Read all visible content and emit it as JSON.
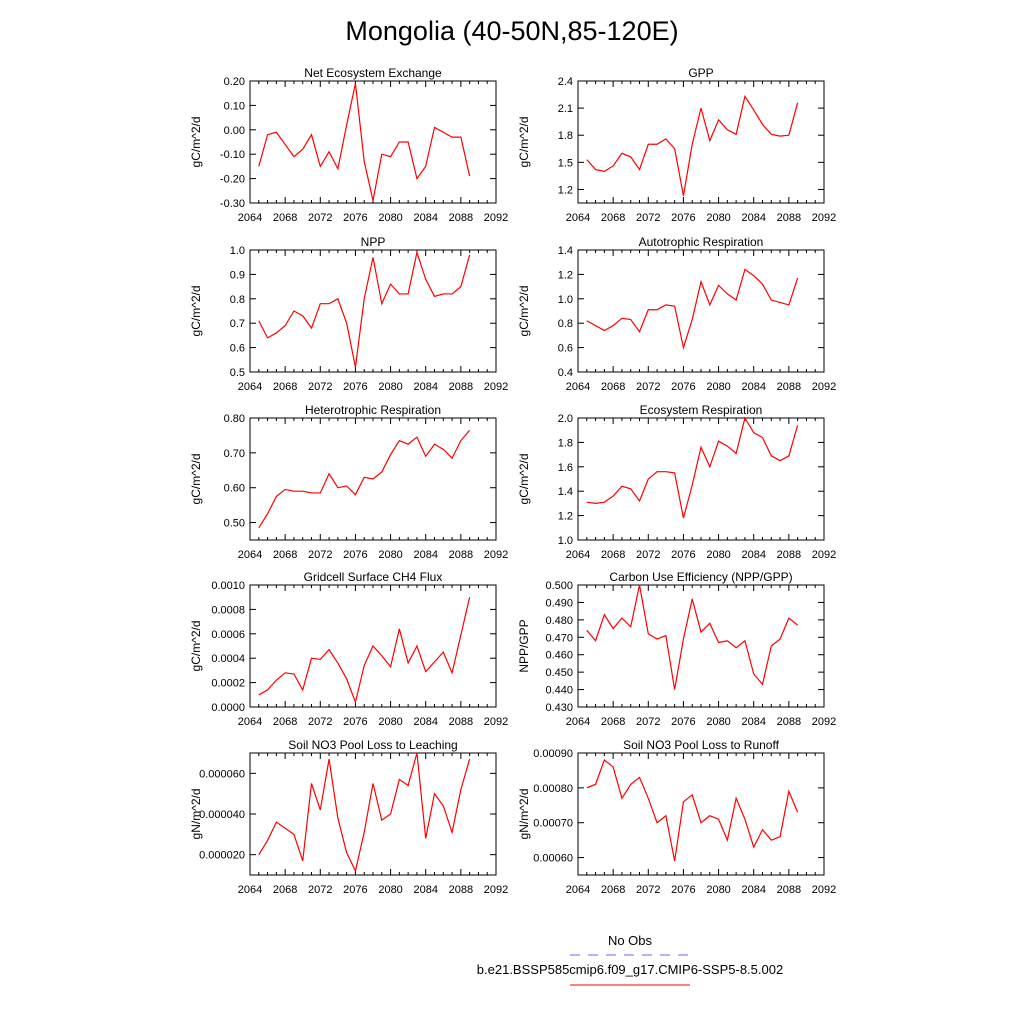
{
  "title": "Mongolia (40-50N,85-120E)",
  "legend": {
    "obs_label": "No Obs",
    "obs_color": "#6666ff",
    "case_label": "b.e21.BSSP585cmip6.f09_g17.CMIP6-SSP5-8.5.002",
    "case_color": "#ff0000"
  },
  "chart_data": [
    {
      "type": "line",
      "title": "Net Ecosystem Exchange",
      "ylabel": "gC/m^2/d",
      "xlim": [
        2064,
        2092
      ],
      "xticks": [
        "2064",
        "2068",
        "2072",
        "2076",
        "2080",
        "2084",
        "2088",
        "2092"
      ],
      "ylim": [
        -0.3,
        0.2
      ],
      "yticks": [
        "0.20",
        "0.10",
        "0.00",
        "-0.10",
        "-0.20",
        "-0.30"
      ],
      "x": [
        2065,
        2066,
        2067,
        2068,
        2069,
        2070,
        2071,
        2072,
        2073,
        2074,
        2075,
        2076,
        2077,
        2078,
        2079,
        2080,
        2081,
        2082,
        2083,
        2084,
        2085,
        2086,
        2087,
        2088,
        2089
      ],
      "series": [
        {
          "values": [
            -0.15,
            -0.02,
            -0.01,
            -0.06,
            -0.11,
            -0.08,
            -0.02,
            -0.15,
            -0.09,
            -0.16,
            0.02,
            0.19,
            -0.13,
            -0.29,
            -0.1,
            -0.11,
            -0.05,
            -0.05,
            -0.2,
            -0.15,
            0.01,
            -0.01,
            -0.03,
            -0.03,
            -0.19
          ],
          "color": "#ff0000"
        }
      ]
    },
    {
      "type": "line",
      "title": "GPP",
      "ylabel": "gC/m^2/d",
      "xlim": [
        2064,
        2092
      ],
      "xticks": [
        "2064",
        "2068",
        "2072",
        "2076",
        "2080",
        "2084",
        "2088",
        "2092"
      ],
      "ylim": [
        1.05,
        2.4
      ],
      "yticks": [
        "2.4",
        "2.1",
        "1.8",
        "1.5",
        "1.2"
      ],
      "x": [
        2065,
        2066,
        2067,
        2068,
        2069,
        2070,
        2071,
        2072,
        2073,
        2074,
        2075,
        2076,
        2077,
        2078,
        2079,
        2080,
        2081,
        2082,
        2083,
        2084,
        2085,
        2086,
        2087,
        2088,
        2089
      ],
      "series": [
        {
          "values": [
            1.53,
            1.42,
            1.4,
            1.46,
            1.6,
            1.56,
            1.42,
            1.7,
            1.7,
            1.76,
            1.65,
            1.13,
            1.7,
            2.1,
            1.74,
            1.97,
            1.86,
            1.81,
            2.23,
            2.08,
            1.92,
            1.81,
            1.79,
            1.8,
            2.16
          ],
          "color": "#ff0000"
        }
      ]
    },
    {
      "type": "line",
      "title": "NPP",
      "ylabel": "gC/m^2/d",
      "xlim": [
        2064,
        2092
      ],
      "xticks": [
        "2064",
        "2068",
        "2072",
        "2076",
        "2080",
        "2084",
        "2088",
        "2092"
      ],
      "ylim": [
        0.5,
        1.0
      ],
      "yticks": [
        "1.0",
        "0.9",
        "0.8",
        "0.7",
        "0.6",
        "0.5"
      ],
      "x": [
        2065,
        2066,
        2067,
        2068,
        2069,
        2070,
        2071,
        2072,
        2073,
        2074,
        2075,
        2076,
        2077,
        2078,
        2079,
        2080,
        2081,
        2082,
        2083,
        2084,
        2085,
        2086,
        2087,
        2088,
        2089
      ],
      "series": [
        {
          "values": [
            0.71,
            0.64,
            0.66,
            0.69,
            0.75,
            0.73,
            0.68,
            0.78,
            0.78,
            0.8,
            0.7,
            0.52,
            0.8,
            0.97,
            0.78,
            0.86,
            0.82,
            0.82,
            0.99,
            0.88,
            0.81,
            0.82,
            0.82,
            0.85,
            0.98
          ],
          "color": "#ff0000"
        }
      ]
    },
    {
      "type": "line",
      "title": "Autotrophic Respiration",
      "ylabel": "gC/m^2/d",
      "xlim": [
        2064,
        2092
      ],
      "xticks": [
        "2064",
        "2068",
        "2072",
        "2076",
        "2080",
        "2084",
        "2088",
        "2092"
      ],
      "ylim": [
        0.4,
        1.4
      ],
      "yticks": [
        "1.4",
        "1.2",
        "1.0",
        "0.8",
        "0.6",
        "0.4"
      ],
      "x": [
        2065,
        2066,
        2067,
        2068,
        2069,
        2070,
        2071,
        2072,
        2073,
        2074,
        2075,
        2076,
        2077,
        2078,
        2079,
        2080,
        2081,
        2082,
        2083,
        2084,
        2085,
        2086,
        2087,
        2088,
        2089
      ],
      "series": [
        {
          "values": [
            0.82,
            0.78,
            0.74,
            0.78,
            0.84,
            0.83,
            0.73,
            0.91,
            0.91,
            0.95,
            0.94,
            0.6,
            0.83,
            1.14,
            0.95,
            1.11,
            1.04,
            0.99,
            1.24,
            1.19,
            1.12,
            0.99,
            0.97,
            0.95,
            1.17
          ],
          "color": "#ff0000"
        }
      ]
    },
    {
      "type": "line",
      "title": "Heterotrophic Respiration",
      "ylabel": "gC/m^2/d",
      "xlim": [
        2064,
        2092
      ],
      "xticks": [
        "2064",
        "2068",
        "2072",
        "2076",
        "2080",
        "2084",
        "2088",
        "2092"
      ],
      "ylim": [
        0.45,
        0.8
      ],
      "yticks": [
        "0.80",
        "0.70",
        "0.60",
        "0.50"
      ],
      "x": [
        2065,
        2066,
        2067,
        2068,
        2069,
        2070,
        2071,
        2072,
        2073,
        2074,
        2075,
        2076,
        2077,
        2078,
        2079,
        2080,
        2081,
        2082,
        2083,
        2084,
        2085,
        2086,
        2087,
        2088,
        2089
      ],
      "series": [
        {
          "values": [
            0.485,
            0.525,
            0.575,
            0.595,
            0.59,
            0.59,
            0.585,
            0.585,
            0.64,
            0.6,
            0.605,
            0.58,
            0.63,
            0.625,
            0.645,
            0.695,
            0.735,
            0.725,
            0.745,
            0.69,
            0.725,
            0.71,
            0.685,
            0.735,
            0.765
          ],
          "color": "#ff0000"
        }
      ]
    },
    {
      "type": "line",
      "title": "Ecosystem Respiration",
      "ylabel": "gC/m^2/d",
      "xlim": [
        2064,
        2092
      ],
      "xticks": [
        "2064",
        "2068",
        "2072",
        "2076",
        "2080",
        "2084",
        "2088",
        "2092"
      ],
      "ylim": [
        1.0,
        2.0
      ],
      "yticks": [
        "2.0",
        "1.8",
        "1.6",
        "1.4",
        "1.2",
        "1.0"
      ],
      "x": [
        2065,
        2066,
        2067,
        2068,
        2069,
        2070,
        2071,
        2072,
        2073,
        2074,
        2075,
        2076,
        2077,
        2078,
        2079,
        2080,
        2081,
        2082,
        2083,
        2084,
        2085,
        2086,
        2087,
        2088,
        2089
      ],
      "series": [
        {
          "values": [
            1.31,
            1.3,
            1.31,
            1.36,
            1.44,
            1.42,
            1.32,
            1.5,
            1.56,
            1.56,
            1.55,
            1.18,
            1.45,
            1.76,
            1.6,
            1.81,
            1.77,
            1.71,
            2.0,
            1.88,
            1.84,
            1.69,
            1.65,
            1.69,
            1.94
          ],
          "color": "#ff0000"
        }
      ]
    },
    {
      "type": "line",
      "title": "Gridcell Surface CH4 Flux",
      "ylabel": "gC/m^2/d",
      "xlim": [
        2064,
        2092
      ],
      "xticks": [
        "2064",
        "2068",
        "2072",
        "2076",
        "2080",
        "2084",
        "2088",
        "2092"
      ],
      "ylim": [
        0.0,
        0.001
      ],
      "yticks": [
        "0.0010",
        "0.0008",
        "0.0006",
        "0.0004",
        "0.0002",
        "0.0000"
      ],
      "x": [
        2065,
        2066,
        2067,
        2068,
        2069,
        2070,
        2071,
        2072,
        2073,
        2074,
        2075,
        2076,
        2077,
        2078,
        2079,
        2080,
        2081,
        2082,
        2083,
        2084,
        2085,
        2086,
        2087,
        2088,
        2089
      ],
      "series": [
        {
          "values": [
            0.0001,
            0.00014,
            0.00022,
            0.00028,
            0.00027,
            0.00014,
            0.0004,
            0.00039,
            0.00047,
            0.00036,
            0.00023,
            4e-05,
            0.00034,
            0.0005,
            0.00042,
            0.00033,
            0.00064,
            0.00036,
            0.0005,
            0.00029,
            0.00037,
            0.00045,
            0.00028,
            0.00059,
            0.0009
          ],
          "color": "#ff0000"
        }
      ]
    },
    {
      "type": "line",
      "title": "Carbon Use Efficiency (NPP/GPP)",
      "ylabel": "NPP/GPP",
      "xlim": [
        2064,
        2092
      ],
      "xticks": [
        "2064",
        "2068",
        "2072",
        "2076",
        "2080",
        "2084",
        "2088",
        "2092"
      ],
      "ylim": [
        0.43,
        0.5
      ],
      "yticks": [
        "0.500",
        "0.490",
        "0.480",
        "0.470",
        "0.460",
        "0.450",
        "0.440",
        "0.430"
      ],
      "x": [
        2065,
        2066,
        2067,
        2068,
        2069,
        2070,
        2071,
        2072,
        2073,
        2074,
        2075,
        2076,
        2077,
        2078,
        2079,
        2080,
        2081,
        2082,
        2083,
        2084,
        2085,
        2086,
        2087,
        2088,
        2089
      ],
      "series": [
        {
          "values": [
            0.474,
            0.468,
            0.483,
            0.475,
            0.481,
            0.476,
            0.5,
            0.472,
            0.469,
            0.471,
            0.44,
            0.469,
            0.492,
            0.473,
            0.478,
            0.467,
            0.468,
            0.464,
            0.468,
            0.449,
            0.443,
            0.465,
            0.469,
            0.481,
            0.477
          ],
          "color": "#ff0000"
        }
      ]
    },
    {
      "type": "line",
      "title": "Soil NO3 Pool Loss to Leaching",
      "ylabel": "gN/m^2/d",
      "xlim": [
        2064,
        2092
      ],
      "xticks": [
        "2064",
        "2068",
        "2072",
        "2076",
        "2080",
        "2084",
        "2088",
        "2092"
      ],
      "ylim": [
        1e-05,
        7e-05
      ],
      "yticks": [
        "0.000060",
        "0.000040",
        "0.000020"
      ],
      "x": [
        2065,
        2066,
        2067,
        2068,
        2069,
        2070,
        2071,
        2072,
        2073,
        2074,
        2075,
        2076,
        2077,
        2078,
        2079,
        2080,
        2081,
        2082,
        2083,
        2084,
        2085,
        2086,
        2087,
        2088,
        2089
      ],
      "series": [
        {
          "values": [
            2e-05,
            2.7e-05,
            3.6e-05,
            3.3e-05,
            3e-05,
            1.7e-05,
            5.5e-05,
            4.2e-05,
            6.7e-05,
            3.8e-05,
            2.1e-05,
            1.2e-05,
            3.1e-05,
            5.5e-05,
            3.7e-05,
            4e-05,
            5.7e-05,
            5.4e-05,
            7e-05,
            2.8e-05,
            5e-05,
            4.4e-05,
            3.1e-05,
            5.2e-05,
            6.7e-05
          ],
          "color": "#ff0000"
        }
      ]
    },
    {
      "type": "line",
      "title": "Soil NO3 Pool Loss to Runoff",
      "ylabel": "gN/m^2/d",
      "xlim": [
        2064,
        2092
      ],
      "xticks": [
        "2064",
        "2068",
        "2072",
        "2076",
        "2080",
        "2084",
        "2088",
        "2092"
      ],
      "ylim": [
        0.00055,
        0.0009
      ],
      "yticks": [
        "0.00090",
        "0.00080",
        "0.00070",
        "0.00060"
      ],
      "x": [
        2065,
        2066,
        2067,
        2068,
        2069,
        2070,
        2071,
        2072,
        2073,
        2074,
        2075,
        2076,
        2077,
        2078,
        2079,
        2080,
        2081,
        2082,
        2083,
        2084,
        2085,
        2086,
        2087,
        2088,
        2089
      ],
      "series": [
        {
          "values": [
            0.0008,
            0.00081,
            0.00088,
            0.00086,
            0.00077,
            0.00081,
            0.00083,
            0.00077,
            0.0007,
            0.00072,
            0.00059,
            0.00076,
            0.00078,
            0.0007,
            0.00072,
            0.00071,
            0.00065,
            0.00077,
            0.00071,
            0.00063,
            0.00068,
            0.00065,
            0.00066,
            0.00079,
            0.00073
          ],
          "color": "#ff0000"
        }
      ]
    }
  ]
}
